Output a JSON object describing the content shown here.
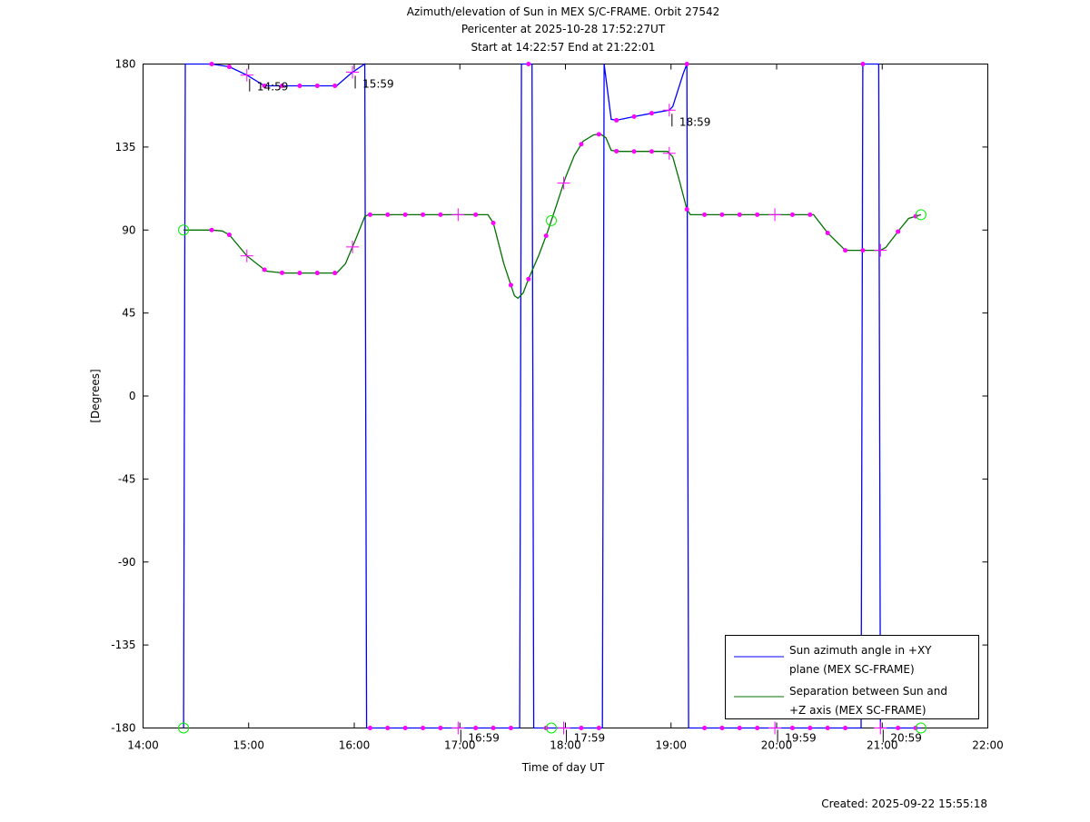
{
  "chart_data": {
    "type": "line",
    "title_lines": [
      "Azimuth/elevation of Sun in MEX S/C-FRAME.  Orbit 27542",
      "Pericenter at 2025-10-28 17:52:27UT",
      "Start at 14:22:57 End at 21:22:01"
    ],
    "xlabel": "Time of day UT",
    "ylabel": "[Degrees]",
    "xlim": [
      "14:00",
      "22:00"
    ],
    "ylim": [
      -180,
      180
    ],
    "x_ticks": [
      "14:00",
      "15:00",
      "16:00",
      "17:00",
      "18:00",
      "19:00",
      "20:00",
      "21:00",
      "22:00"
    ],
    "y_ticks": [
      180,
      135,
      90,
      45,
      0,
      -45,
      -90,
      -135,
      -180
    ],
    "grid": false,
    "legend_position": "bottom-right",
    "series": [
      {
        "name": "Sun azimuth angle in +XY plane (MEX SC-FRAME)",
        "legend_lines": [
          "Sun azimuth angle in +XY",
          "plane (MEX SC-FRAME)"
        ],
        "color": "#0000ff",
        "points": [
          [
            "14:23",
            -180
          ],
          [
            "14:24",
            180
          ],
          [
            "14:39",
            180
          ],
          [
            "14:49",
            178.5
          ],
          [
            "14:59",
            174
          ],
          [
            "15:09",
            168.2
          ],
          [
            "15:20",
            168.2
          ],
          [
            "15:30",
            168.2
          ],
          [
            "15:40",
            168.2
          ],
          [
            "15:50",
            168.2
          ],
          [
            "15:59",
            175.6
          ],
          [
            "16:06",
            180
          ],
          [
            "16:07",
            -180
          ],
          [
            "17:34",
            -180
          ],
          [
            "17:35",
            180
          ],
          [
            "17:39",
            180
          ],
          [
            "17:41",
            180
          ],
          [
            "17:42",
            -180
          ],
          [
            "18:21",
            -180
          ],
          [
            "18:22",
            180
          ],
          [
            "18:26",
            150
          ],
          [
            "18:29",
            149.5
          ],
          [
            "18:39",
            151.5
          ],
          [
            "18:50",
            153.5
          ],
          [
            "18:59",
            155
          ],
          [
            "19:01",
            157
          ],
          [
            "19:04",
            166
          ],
          [
            "19:07",
            175
          ],
          [
            "19:09",
            180
          ],
          [
            "19:10",
            -180
          ],
          [
            "20:48",
            -180
          ],
          [
            "20:49",
            180
          ],
          [
            "20:58",
            180
          ],
          [
            "20:59",
            -180
          ],
          [
            "21:22",
            -180
          ]
        ]
      },
      {
        "name": "Separation between Sun and +Z axis (MEX SC-FRAME)",
        "legend_lines": [
          "Separation between Sun and",
          "+Z axis (MEX SC-FRAME)"
        ],
        "color": "#007000",
        "points": [
          [
            "14:23",
            90
          ],
          [
            "14:39",
            90
          ],
          [
            "14:45",
            89.5
          ],
          [
            "14:49",
            87.4
          ],
          [
            "14:59",
            76
          ],
          [
            "15:10",
            67.7
          ],
          [
            "15:20",
            66.7
          ],
          [
            "15:50",
            66.7
          ],
          [
            "15:55",
            71.7
          ],
          [
            "16:01",
            85.4
          ],
          [
            "16:06",
            97.3
          ],
          [
            "16:08",
            98.3
          ],
          [
            "17:16",
            98.3
          ],
          [
            "17:19",
            93.8
          ],
          [
            "17:25",
            71.7
          ],
          [
            "17:31",
            54.4
          ],
          [
            "17:33",
            53
          ],
          [
            "17:36",
            55.9
          ],
          [
            "17:39",
            63.4
          ],
          [
            "17:45",
            76.6
          ],
          [
            "17:50",
            89.4
          ],
          [
            "17:55",
            103.7
          ],
          [
            "18:00",
            118.4
          ],
          [
            "18:05",
            130.3
          ],
          [
            "18:10",
            138.1
          ],
          [
            "18:16",
            141.6
          ],
          [
            "18:20",
            142
          ],
          [
            "18:23",
            140
          ],
          [
            "18:26",
            133.2
          ],
          [
            "18:30",
            132.6
          ],
          [
            "18:58",
            132.6
          ],
          [
            "19:01",
            129.6
          ],
          [
            "19:05",
            116
          ],
          [
            "19:09",
            101.2
          ],
          [
            "19:11",
            98.3
          ],
          [
            "20:21",
            98.3
          ],
          [
            "20:29",
            88.4
          ],
          [
            "20:39",
            79
          ],
          [
            "20:59",
            79
          ],
          [
            "21:02",
            80.5
          ],
          [
            "21:10",
            90.4
          ],
          [
            "21:15",
            96.3
          ],
          [
            "21:22",
            98.3
          ]
        ]
      }
    ],
    "marker_color": "#ff00ff",
    "event_marker_color": "#00ee00",
    "marker_times": [
      "14:39",
      "14:49",
      "15:09",
      "15:19",
      "15:29",
      "15:39",
      "15:49",
      "16:09",
      "16:19",
      "16:29",
      "16:39",
      "16:49",
      "17:09",
      "17:19",
      "17:29",
      "17:39",
      "17:49",
      "18:09",
      "18:19",
      "18:29",
      "18:39",
      "18:49",
      "19:09",
      "19:19",
      "19:29",
      "19:39",
      "19:49",
      "20:09",
      "20:19",
      "20:29",
      "20:39",
      "20:49",
      "21:09",
      "21:19"
    ],
    "hour_marker_times": [
      "14:59",
      "15:59",
      "16:59",
      "17:59",
      "18:59",
      "19:59",
      "20:59"
    ],
    "hour_labels": [
      "14:59",
      "15:59",
      "16:59",
      "17:59",
      "18:59",
      "19:59",
      "20:59"
    ],
    "event_times": [
      "14:23",
      "17:52",
      "21:22"
    ]
  },
  "footer": {
    "created": "Created: 2025-09-22 15:55:18"
  }
}
